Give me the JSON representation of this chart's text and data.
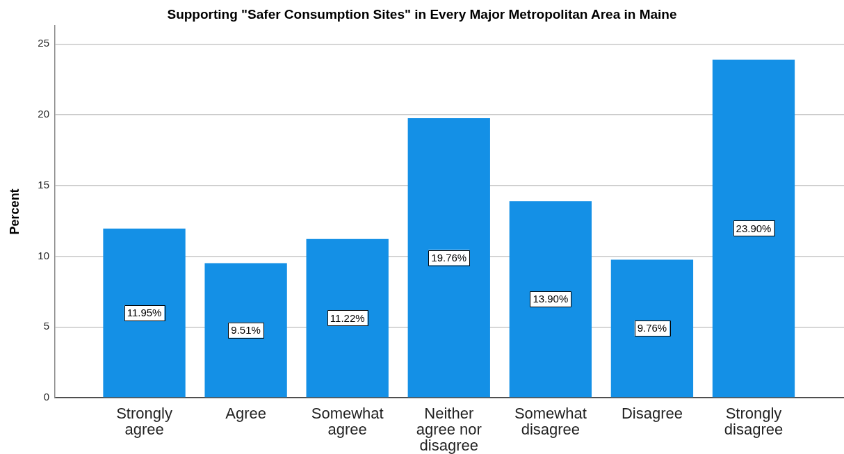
{
  "chart_data": {
    "type": "bar",
    "title": "Supporting \"Safer Consumption Sites\" in Every Major Metropolitan Area in Maine",
    "ylabel": "Percent",
    "categories": [
      "Strongly agree",
      "Agree",
      "Somewhat agree",
      "Neither agree nor disagree",
      "Somewhat disagree",
      "Disagree",
      "Strongly disagree"
    ],
    "values": [
      11.95,
      9.51,
      11.22,
      19.76,
      13.9,
      9.76,
      23.9
    ],
    "color": "#1490e6",
    "value_labels": [
      "11.95%",
      "9.51%",
      "11.22%",
      "19.76%",
      "13.90%",
      "9.76%",
      "23.90%"
    ],
    "ylim": [
      0,
      26.3
    ],
    "yticks": [
      0,
      5,
      10,
      15,
      20,
      25
    ],
    "grid": "y"
  }
}
